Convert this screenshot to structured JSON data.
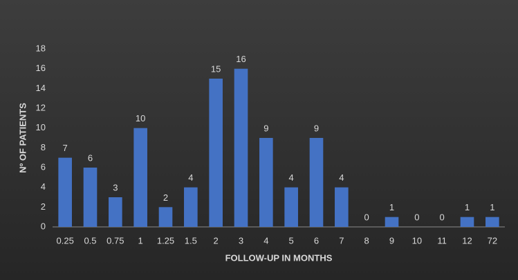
{
  "chart_data": {
    "type": "bar",
    "x_label": "FOLLOW-UP IN MONTHS",
    "y_label": "Nº OF PATIENTS",
    "categories": [
      "0.25",
      "0.5",
      "0.75",
      "1",
      "1.25",
      "1.5",
      "2",
      "3",
      "4",
      "5",
      "6",
      "7",
      "8",
      "9",
      "10",
      "11",
      "12",
      "72"
    ],
    "values": [
      7,
      6,
      3,
      10,
      2,
      4,
      15,
      16,
      9,
      4,
      9,
      4,
      0,
      1,
      0,
      0,
      1,
      1
    ],
    "color": "#4472c4",
    "ylim": [
      0,
      18
    ],
    "yticks": [
      0,
      2,
      4,
      6,
      8,
      10,
      12,
      14,
      16,
      18
    ],
    "grid": false,
    "data_labels": true
  }
}
